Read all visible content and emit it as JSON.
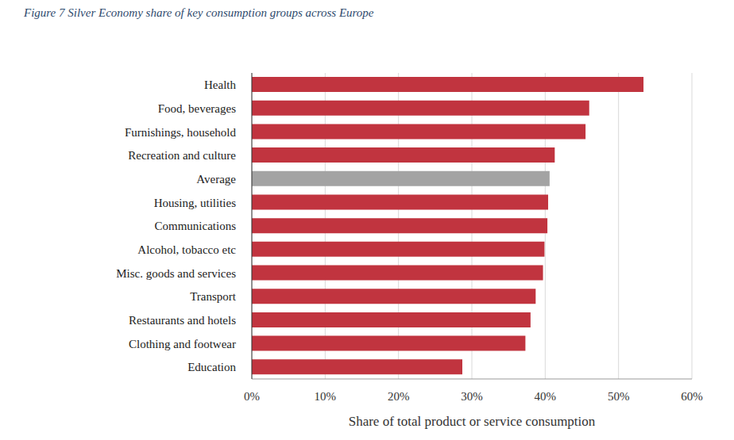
{
  "chart_data": {
    "type": "bar",
    "orientation": "horizontal",
    "title": "Figure 7 Silver Economy share of key consumption groups across Europe",
    "x_label": "Share of total product or service consumption",
    "categories": [
      "Health",
      "Food, beverages",
      "Furnishings, household",
      "Recreation and culture",
      "Average",
      "Housing, utilities",
      "Communications",
      "Alcohol, tobacco etc",
      "Misc. goods and services",
      "Transport",
      "Restaurants and hotels",
      "Clothing and footwear",
      "Education"
    ],
    "values": [
      53.4,
      46.0,
      45.5,
      41.3,
      40.6,
      40.4,
      40.3,
      39.9,
      39.7,
      38.7,
      38.0,
      37.3,
      28.7
    ],
    "colors": [
      "#c1343f",
      "#c1343f",
      "#c1343f",
      "#c1343f",
      "#a3a3a3",
      "#c1343f",
      "#c1343f",
      "#c1343f",
      "#c1343f",
      "#c1343f",
      "#c1343f",
      "#c1343f",
      "#c1343f"
    ],
    "xlim": [
      0,
      60
    ],
    "xticks": [
      {
        "value": 0,
        "label": "0%"
      },
      {
        "value": 10,
        "label": "10%"
      },
      {
        "value": 20,
        "label": "20%"
      },
      {
        "value": 30,
        "label": "30%"
      },
      {
        "value": 40,
        "label": "40%"
      },
      {
        "value": 50,
        "label": "50%"
      },
      {
        "value": 60,
        "label": "60%"
      }
    ],
    "grid": true
  }
}
